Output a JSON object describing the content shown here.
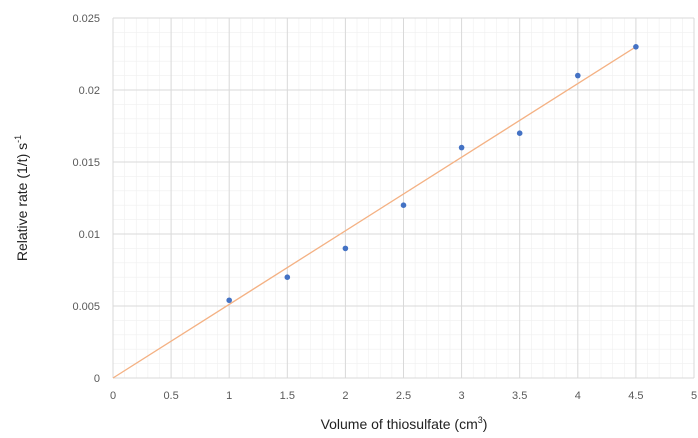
{
  "chart_data": {
    "type": "scatter",
    "xlabel": "Volume of thiosulfate (cm",
    "xlabel_sup": "3",
    "xlabel_end": ")",
    "ylabel": "Relative rate (1/t) s",
    "ylabel_sup": "-1",
    "xlim": [
      0,
      5
    ],
    "ylim": [
      0,
      0.025
    ],
    "x_ticks": [
      "0",
      "0.5",
      "1",
      "1.5",
      "2",
      "2.5",
      "3",
      "3.5",
      "4",
      "4.5",
      "5"
    ],
    "y_ticks": [
      "0",
      "0.005",
      "0.01",
      "0.015",
      "0.02",
      "0.025"
    ],
    "x_tick_values": [
      0,
      0.5,
      1,
      1.5,
      2,
      2.5,
      3,
      3.5,
      4,
      4.5,
      5
    ],
    "y_tick_values": [
      0,
      0.005,
      0.01,
      0.015,
      0.02,
      0.025
    ],
    "grid": true,
    "minor_grid": true,
    "points": [
      {
        "x": 1.0,
        "y": 0.0054
      },
      {
        "x": 1.5,
        "y": 0.007
      },
      {
        "x": 2.0,
        "y": 0.009
      },
      {
        "x": 2.5,
        "y": 0.012
      },
      {
        "x": 3.0,
        "y": 0.016
      },
      {
        "x": 3.5,
        "y": 0.017
      },
      {
        "x": 4.0,
        "y": 0.021
      },
      {
        "x": 4.5,
        "y": 0.023
      }
    ],
    "trendline": {
      "x": [
        0,
        4.5
      ],
      "y": [
        0,
        0.023
      ]
    },
    "colors": {
      "point": "#4472C4",
      "trendline": "#F4B183",
      "grid_major": "#D9D9D9",
      "grid_minor": "#EFEFEF"
    }
  }
}
